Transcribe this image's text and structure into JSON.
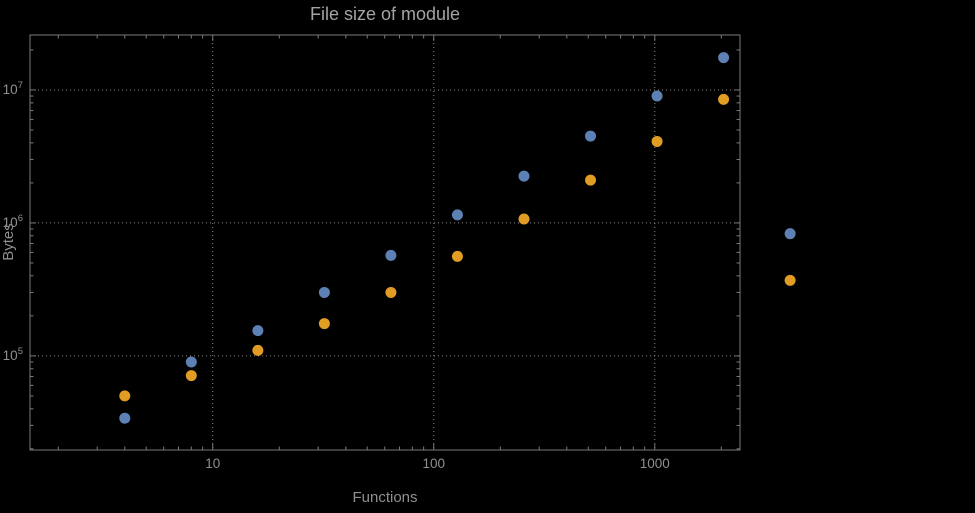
{
  "colors": {
    "background": "#000000",
    "frame": "#7a7a7a",
    "grid": "#8a8a8a",
    "tick_label": "#8f8f8f",
    "title": "#a3a3a3",
    "axis_label": "#8f8f8f"
  },
  "chart_data": {
    "type": "scatter",
    "title": "File size of module",
    "xlabel": "Functions",
    "ylabel": "Bytes",
    "x_scale": "log",
    "y_scale": "log",
    "xlim": [
      1.49,
      2430
    ],
    "ylim": [
      19600,
      25900000
    ],
    "x_ticks": [
      10,
      100,
      1000
    ],
    "y_ticks": [
      100000,
      1000000,
      10000000
    ],
    "grid": "dotted",
    "legend": "none",
    "marker_radius": 5.5,
    "series": [
      {
        "name": "series-1-blue",
        "color": "#5e81b5",
        "points": [
          [
            4,
            34000
          ],
          [
            8,
            90000
          ],
          [
            16,
            155000
          ],
          [
            32,
            300000
          ],
          [
            64,
            570000
          ],
          [
            128,
            1150000
          ],
          [
            256,
            2250000
          ],
          [
            512,
            4500000
          ],
          [
            1024,
            9000000
          ],
          [
            2048,
            17500000
          ],
          [
            4096,
            830000
          ]
        ]
      },
      {
        "name": "series-2-orange",
        "color": "#e19c24",
        "points": [
          [
            4,
            50000
          ],
          [
            8,
            71000
          ],
          [
            16,
            110000
          ],
          [
            32,
            175000
          ],
          [
            64,
            300000
          ],
          [
            128,
            560000
          ],
          [
            256,
            1070000
          ],
          [
            512,
            2100000
          ],
          [
            1024,
            4100000
          ],
          [
            2048,
            8500000
          ],
          [
            4096,
            370000
          ]
        ]
      }
    ]
  }
}
